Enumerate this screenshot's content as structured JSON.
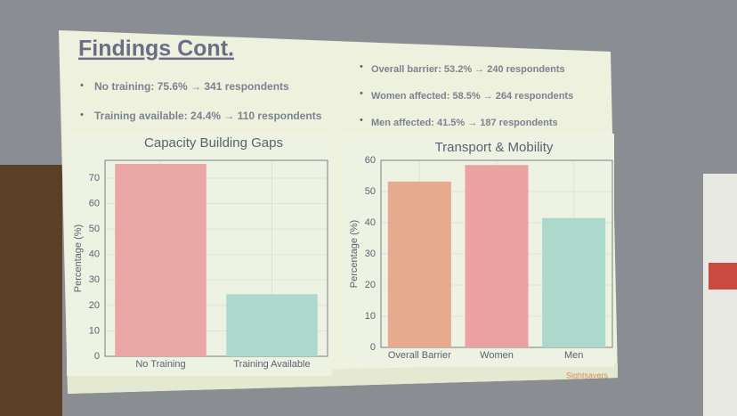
{
  "title": "Findings Cont.",
  "bullets_left": [
    "No training: 75.6% → 341 respondents",
    "Training available: 24.4% → 110 respondents"
  ],
  "bullets_right": [
    "Overall barrier: 53.2% → 240 respondents",
    "Women affected: 58.5% → 264 respondents",
    "Men affected: 41.5% → 187 respondents"
  ],
  "logo": "Sightsavers",
  "chart_data": [
    {
      "type": "bar",
      "title": "Capacity Building Gaps",
      "y_label": "Percentage (%)",
      "categories": [
        "No Training",
        "Training Available"
      ],
      "values": [
        75.6,
        24.4
      ],
      "colors": [
        "#eaa6a4",
        "#acd9cc"
      ],
      "ylim": [
        0,
        77
      ],
      "yticks": [
        0,
        10,
        20,
        30,
        40,
        50,
        60,
        70
      ],
      "grid": true
    },
    {
      "type": "bar",
      "title": "Transport & Mobility",
      "y_label": "Percentage (%)",
      "categories": [
        "Overall Barrier",
        "Women",
        "Men"
      ],
      "values": [
        53.2,
        58.5,
        41.5
      ],
      "colors": [
        "#e6ab8e",
        "#eaa2a2",
        "#acd9cc"
      ],
      "ylim": [
        0,
        60
      ],
      "yticks": [
        0,
        10,
        20,
        30,
        40,
        50,
        60
      ],
      "grid": true
    }
  ]
}
